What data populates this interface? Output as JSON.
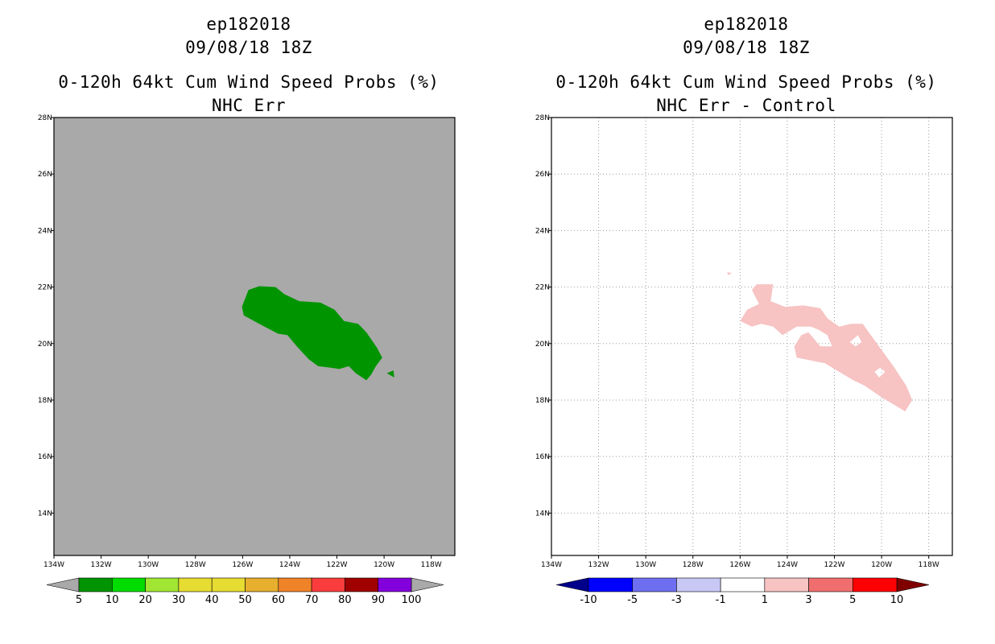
{
  "panels": [
    {
      "title_lines": [
        "ep182018",
        "09/08/18 18Z",
        "0-120h 64kt Cum Wind Speed Probs (%)",
        "NHC Err"
      ],
      "background": "#a9a9a9",
      "grid": false
    },
    {
      "title_lines": [
        "ep182018",
        "09/08/18 18Z",
        "0-120h 64kt Cum Wind Speed Probs (%)",
        "NHC Err - Control"
      ],
      "background": "#ffffff",
      "grid": true
    }
  ],
  "chart_data": [
    {
      "type": "heatmap",
      "subtype": "filled-contour-map",
      "title": "0-120h 64kt Cum Wind Speed Probs (%)",
      "subtitle": "NHC Err",
      "storm": "ep182018",
      "datetime": "09/08/18 18Z",
      "x_range": [
        -134,
        -117
      ],
      "y_range": [
        12.5,
        28
      ],
      "x_ticks": [
        -134,
        -132,
        -130,
        -128,
        -126,
        -124,
        -122,
        -120,
        -118
      ],
      "x_tick_labels": [
        "134W",
        "132W",
        "130W",
        "128W",
        "126W",
        "124W",
        "122W",
        "120W",
        "118W"
      ],
      "y_ticks": [
        14,
        16,
        18,
        20,
        22,
        24,
        26,
        28
      ],
      "y_tick_labels": [
        "14N",
        "16N",
        "18N",
        "20N",
        "22N",
        "24N",
        "26N",
        "28N"
      ],
      "colorbar": {
        "labels": [
          "5",
          "10",
          "20",
          "30",
          "40",
          "50",
          "60",
          "70",
          "80",
          "90",
          "100"
        ],
        "colors": [
          "#009400",
          "#00dc00",
          "#a0e632",
          "#e6dc32",
          "#e6dc32",
          "#e6af2d",
          "#f08228",
          "#fa3c3c",
          "#a00000",
          "#8200dc"
        ],
        "arrow_color": "#a9a9a9"
      },
      "regions": [
        {
          "level": "5-10",
          "color": "#009400",
          "polygons": [
            [
              [
                -126.03,
                21.3
              ],
              [
                -125.75,
                21.9
              ],
              [
                -125.29,
                22.03
              ],
              [
                -124.6,
                22.0
              ],
              [
                -124.23,
                21.75
              ],
              [
                -123.6,
                21.5
              ],
              [
                -122.7,
                21.45
              ],
              [
                -122.1,
                21.2
              ],
              [
                -121.7,
                20.8
              ],
              [
                -121.1,
                20.7
              ],
              [
                -120.75,
                20.4
              ],
              [
                -120.3,
                19.85
              ],
              [
                -120.08,
                19.5
              ],
              [
                -120.35,
                19.2
              ],
              [
                -120.55,
                18.9
              ],
              [
                -120.75,
                18.7
              ],
              [
                -121.2,
                18.95
              ],
              [
                -121.5,
                19.2
              ],
              [
                -121.9,
                19.1
              ],
              [
                -122.3,
                19.15
              ],
              [
                -122.8,
                19.2
              ],
              [
                -123.2,
                19.45
              ],
              [
                -123.7,
                19.9
              ],
              [
                -124.1,
                20.3
              ],
              [
                -124.5,
                20.35
              ],
              [
                -125.3,
                20.7
              ],
              [
                -125.95,
                21.0
              ],
              [
                -126.03,
                21.3
              ]
            ],
            [
              [
                -119.88,
                18.95
              ],
              [
                -119.6,
                19.05
              ],
              [
                -119.57,
                18.8
              ],
              [
                -119.88,
                18.95
              ]
            ]
          ]
        }
      ]
    },
    {
      "type": "heatmap",
      "subtype": "filled-contour-map",
      "title": "0-120h 64kt Cum Wind Speed Probs (%)",
      "subtitle": "NHC Err - Control",
      "storm": "ep182018",
      "datetime": "09/08/18 18Z",
      "x_range": [
        -134,
        -117
      ],
      "y_range": [
        12.5,
        28
      ],
      "x_ticks": [
        -134,
        -132,
        -130,
        -128,
        -126,
        -124,
        -122,
        -120,
        -118
      ],
      "x_tick_labels": [
        "134W",
        "132W",
        "130W",
        "128W",
        "126W",
        "124W",
        "122W",
        "120W",
        "118W"
      ],
      "y_ticks": [
        14,
        16,
        18,
        20,
        22,
        24,
        26,
        28
      ],
      "y_tick_labels": [
        "14N",
        "16N",
        "18N",
        "20N",
        "22N",
        "24N",
        "26N",
        "28N"
      ],
      "colorbar": {
        "labels": [
          "-10",
          "-5",
          "-3",
          "-1",
          "1",
          "3",
          "5",
          "10"
        ],
        "colors": [
          "#0000ff",
          "#6e6ef0",
          "#c8c8f5",
          "#ffffff",
          "#f7c3c3",
          "#f06e6e",
          "#ff0000"
        ],
        "arrow_left_color": "#00008b",
        "arrow_right_color": "#800000"
      },
      "regions": [
        {
          "level": "1-3",
          "color": "#f7c3c3",
          "polygons": [
            [
              [
                -125.3,
                22.1
              ],
              [
                -124.6,
                22.1
              ],
              [
                -124.7,
                21.5
              ],
              [
                -124.1,
                21.3
              ],
              [
                -123.3,
                21.35
              ],
              [
                -122.6,
                21.25
              ],
              [
                -122.3,
                20.9
              ],
              [
                -121.8,
                20.6
              ],
              [
                -121.3,
                20.7
              ],
              [
                -120.8,
                20.7
              ],
              [
                -120.2,
                20.0
              ],
              [
                -119.5,
                19.2
              ],
              [
                -118.95,
                18.5
              ],
              [
                -118.7,
                18.0
              ],
              [
                -119.0,
                17.6
              ],
              [
                -119.4,
                17.8
              ],
              [
                -120.0,
                18.1
              ],
              [
                -120.7,
                18.5
              ],
              [
                -121.2,
                18.7
              ],
              [
                -121.8,
                19.0
              ],
              [
                -122.4,
                19.3
              ],
              [
                -123.0,
                19.4
              ],
              [
                -123.6,
                19.5
              ],
              [
                -123.7,
                19.9
              ],
              [
                -123.4,
                20.3
              ],
              [
                -123.1,
                20.4
              ],
              [
                -122.6,
                19.9
              ],
              [
                -122.1,
                19.9
              ],
              [
                -122.3,
                20.3
              ],
              [
                -122.7,
                20.5
              ],
              [
                -123.0,
                20.6
              ],
              [
                -123.6,
                20.6
              ],
              [
                -124.2,
                20.3
              ],
              [
                -124.6,
                20.6
              ],
              [
                -125.1,
                20.7
              ],
              [
                -125.5,
                20.6
              ],
              [
                -126.0,
                20.8
              ],
              [
                -125.7,
                21.2
              ],
              [
                -125.2,
                21.4
              ],
              [
                -125.5,
                21.9
              ],
              [
                -125.3,
                22.1
              ]
            ],
            [
              [
                -126.55,
                22.52
              ],
              [
                -126.35,
                22.5
              ],
              [
                -126.5,
                22.42
              ],
              [
                -126.55,
                22.52
              ]
            ]
          ],
          "holes": [
            [
              [
                -121.1,
                19.9
              ],
              [
                -120.85,
                20.05
              ],
              [
                -121.0,
                20.3
              ],
              [
                -121.35,
                20.05
              ],
              [
                -121.1,
                19.9
              ]
            ],
            [
              [
                -120.1,
                18.8
              ],
              [
                -119.85,
                19.0
              ],
              [
                -120.05,
                19.15
              ],
              [
                -120.3,
                19.0
              ],
              [
                -120.1,
                18.8
              ]
            ]
          ]
        }
      ]
    }
  ]
}
